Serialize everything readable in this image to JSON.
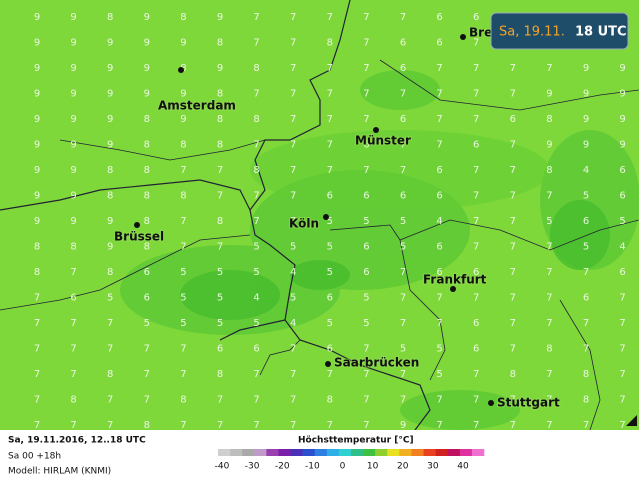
{
  "header": {
    "date": "Sa, 19.11.",
    "time": "18 UTC"
  },
  "cities": [
    "Bre",
    "Amsterdam",
    "Münster",
    "Köln",
    "Brüssel",
    "Frankfurt",
    "Saarbrücken",
    "Stuttgart"
  ],
  "grid": {
    "rows": [
      [
        9,
        9,
        8,
        9,
        8,
        9,
        7,
        7,
        7,
        7,
        7,
        6,
        6,
        null,
        null,
        null,
        null
      ],
      [
        9,
        9,
        9,
        9,
        9,
        8,
        7,
        7,
        8,
        7,
        6,
        6,
        7,
        null,
        null,
        null,
        null
      ],
      [
        9,
        9,
        9,
        9,
        8,
        9,
        8,
        7,
        7,
        7,
        6,
        7,
        7,
        7,
        7,
        9,
        9
      ],
      [
        9,
        9,
        9,
        9,
        9,
        8,
        7,
        7,
        7,
        7,
        7,
        7,
        7,
        7,
        9,
        9,
        9
      ],
      [
        9,
        9,
        9,
        8,
        9,
        8,
        8,
        7,
        7,
        7,
        6,
        7,
        7,
        6,
        8,
        9,
        9
      ],
      [
        9,
        9,
        9,
        8,
        8,
        8,
        7,
        7,
        7,
        6,
        7,
        7,
        6,
        7,
        9,
        9,
        9
      ],
      [
        9,
        9,
        8,
        8,
        7,
        7,
        8,
        7,
        7,
        7,
        7,
        6,
        7,
        7,
        8,
        4,
        6
      ],
      [
        9,
        9,
        8,
        8,
        8,
        7,
        7,
        7,
        6,
        6,
        6,
        6,
        7,
        7,
        7,
        5,
        6
      ],
      [
        9,
        9,
        9,
        8,
        7,
        8,
        7,
        7,
        5,
        5,
        5,
        4,
        7,
        7,
        5,
        6,
        5
      ],
      [
        8,
        8,
        9,
        8,
        7,
        7,
        5,
        5,
        5,
        6,
        5,
        6,
        7,
        7,
        7,
        5,
        4
      ],
      [
        8,
        7,
        8,
        6,
        5,
        5,
        5,
        4,
        5,
        6,
        7,
        6,
        6,
        7,
        7,
        7,
        6
      ],
      [
        7,
        6,
        5,
        6,
        5,
        5,
        4,
        5,
        6,
        5,
        7,
        7,
        7,
        7,
        7,
        6,
        7
      ],
      [
        7,
        7,
        7,
        5,
        5,
        5,
        5,
        4,
        5,
        5,
        7,
        7,
        6,
        7,
        7,
        7,
        7
      ],
      [
        7,
        7,
        7,
        7,
        7,
        6,
        6,
        7,
        6,
        7,
        5,
        5,
        6,
        7,
        8,
        7,
        7
      ],
      [
        7,
        7,
        8,
        7,
        7,
        8,
        7,
        7,
        7,
        7,
        7,
        5,
        7,
        8,
        7,
        8,
        7
      ],
      [
        7,
        8,
        7,
        7,
        8,
        7,
        7,
        7,
        8,
        7,
        7,
        7,
        7,
        7,
        7,
        8,
        7
      ],
      [
        7,
        7,
        7,
        8,
        7,
        7,
        7,
        7,
        7,
        7,
        9,
        7,
        7,
        7,
        7,
        7,
        7
      ]
    ]
  },
  "footer": {
    "run": "Sa, 19.11.2016, 12..18 UTC",
    "step": "Sa 00 +18h",
    "model": "Modell: HIRLAM (KNMI)",
    "legend_title": "Höchsttemperatur [°C]",
    "scale": [
      -40,
      -30,
      -20,
      -10,
      0,
      10,
      20,
      30,
      40
    ]
  }
}
